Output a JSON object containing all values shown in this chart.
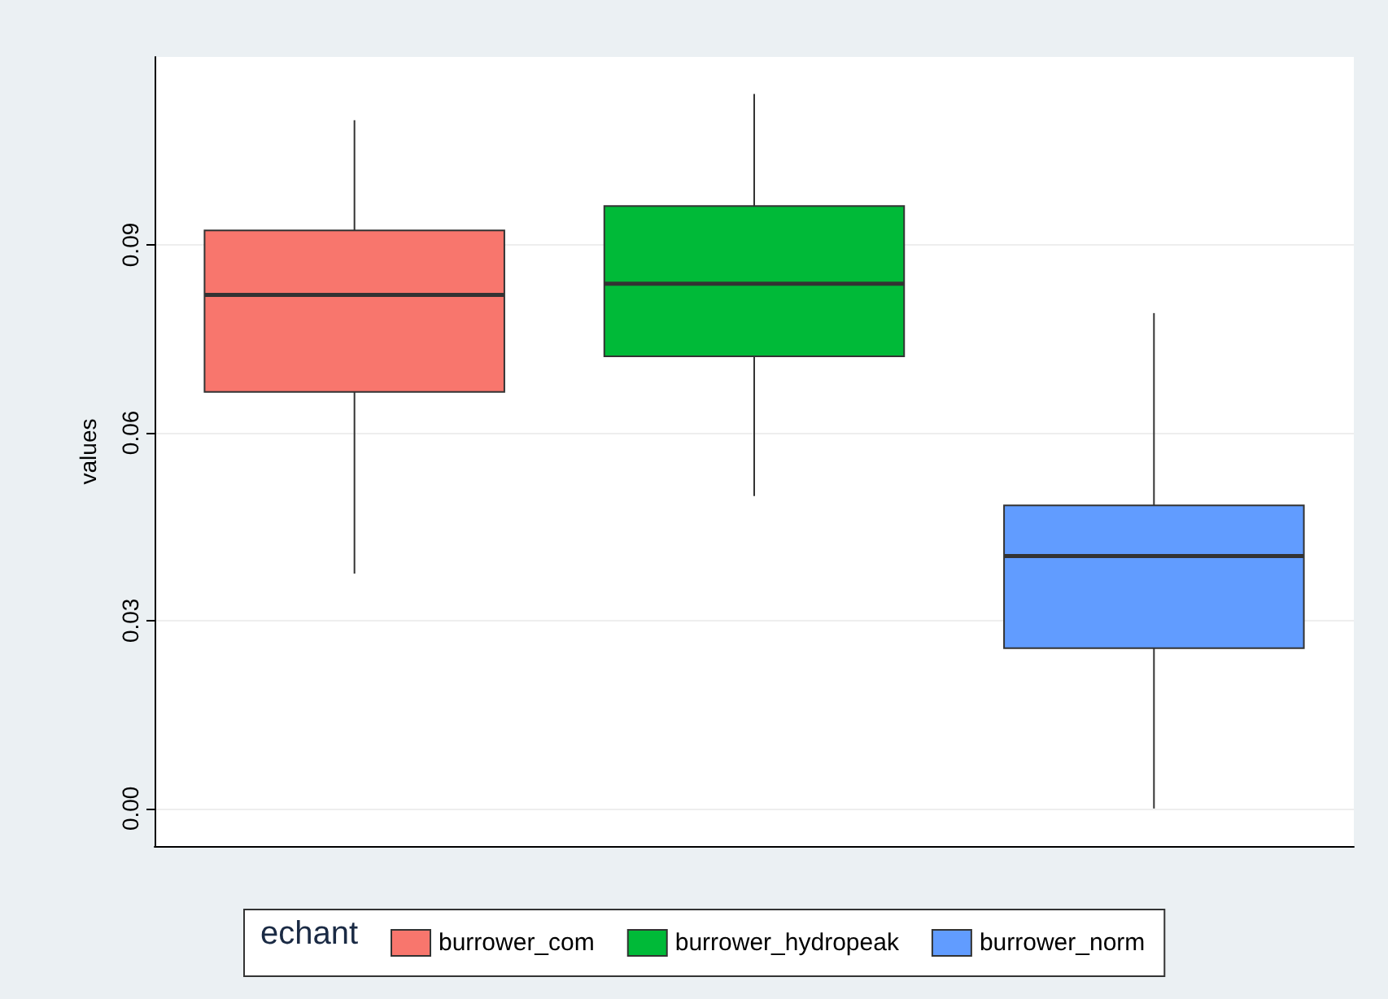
{
  "chart_data": {
    "type": "box",
    "ylabel": "values",
    "legend_title": "echant",
    "categories": [
      null,
      null,
      null
    ],
    "ylim": [
      -0.006,
      0.12
    ],
    "yticks": [
      {
        "value": 0,
        "label": "0.00"
      },
      {
        "value": 0.03,
        "label": "0.03"
      },
      {
        "value": 0.06,
        "label": "0.06"
      },
      {
        "value": 0.09,
        "label": "0.09"
      }
    ],
    "grid": "y",
    "legend": "bottom",
    "series": [
      {
        "name": "burrower_com",
        "color": "#f8766d",
        "boxes": [
          {
            "low": 0.0375,
            "q1": 0.0665,
            "median": 0.082,
            "q3": 0.0923,
            "high": 0.1099
          },
          null,
          null
        ]
      },
      {
        "name": "burrower_hydropeak",
        "color": "#00ba38",
        "boxes": [
          null,
          {
            "low": 0.0499,
            "q1": 0.0722,
            "median": 0.0838,
            "q3": 0.0962,
            "high": 0.1141
          },
          null
        ]
      },
      {
        "name": "burrower_norm",
        "color": "#619cff",
        "boxes": [
          null,
          null,
          {
            "low": 0,
            "q1": 0.0256,
            "median": 0.0403,
            "q3": 0.0484,
            "high": 0.0791
          }
        ]
      }
    ]
  }
}
